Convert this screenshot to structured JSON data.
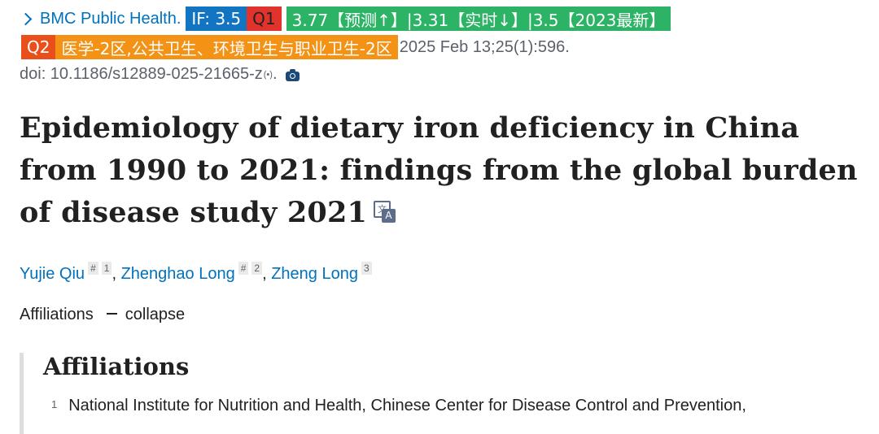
{
  "journal": {
    "name": "BMC Public Health.",
    "badges": {
      "impact_factor": "IF: 3.5",
      "quartile": "Q1",
      "prediction": "3.77【预测↑】|3.31【实时↓】|3.5【2023最新】",
      "zone": "Q2",
      "category": "医学-2区,公共卫生、环境卫生与职业卫生-2区"
    },
    "pub_date": "2025 Feb 13;25(1):596.",
    "doi": "doi: 10.1186/s12889-025-21665-z",
    "doi_suffix": ".",
    "colors": {
      "link": "#0071bc",
      "if": "#1275c2",
      "q1": "#e2322c",
      "prediction": "#2db366",
      "q2": "#e94f1b",
      "category": "#f39214"
    }
  },
  "article": {
    "title": "Epidemiology of dietary iron deficiency in China from 1990 to 2021: findings from the global burden of disease study 2021"
  },
  "authors": [
    {
      "name": "Yujie Qiu",
      "marks": [
        "#",
        "1"
      ]
    },
    {
      "name": "Zhenghao Long",
      "marks": [
        "#",
        "2"
      ]
    },
    {
      "name": "Zheng Long",
      "marks": [
        "3"
      ]
    }
  ],
  "affiliations": {
    "toggle_label": "Affiliations",
    "toggle_action": "collapse",
    "heading": "Affiliations",
    "items": [
      {
        "num": "1",
        "text": "National Institute for Nutrition and Health, Chinese Center for Disease Control and Prevention,"
      }
    ]
  },
  "icons": {
    "journal_link": "chevron-right-icon",
    "doi_extra": "radio-wave-icon",
    "camera": "camera-icon",
    "translate": "translate-icon"
  }
}
